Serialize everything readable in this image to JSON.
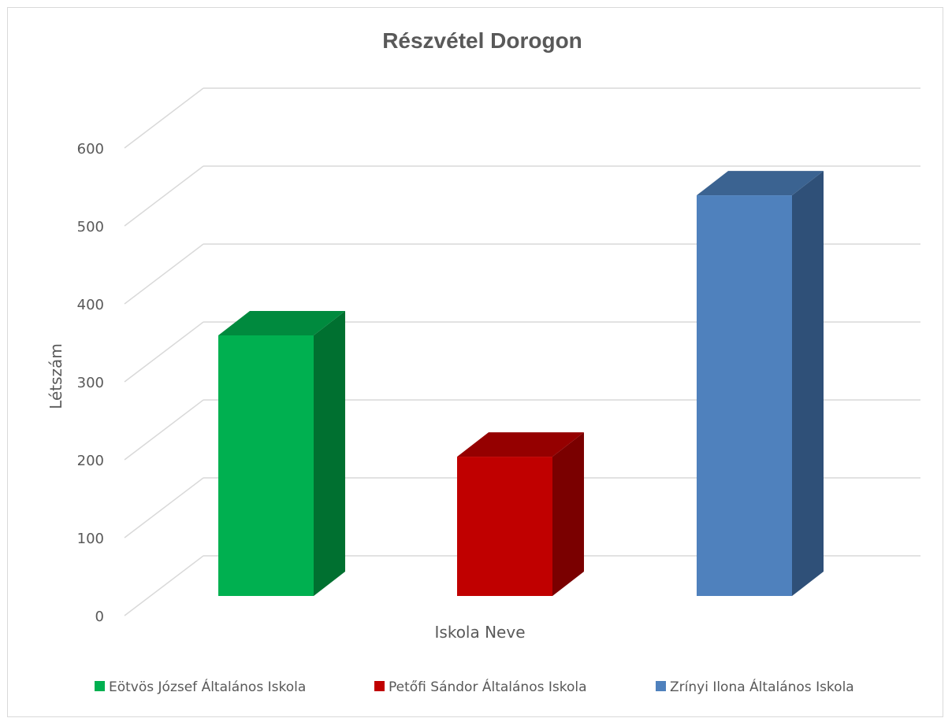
{
  "chart_data": {
    "type": "bar",
    "title": "Részvétel Dorogon",
    "xlabel": "Iskola Neve",
    "ylabel": "Létszám",
    "ylim": [
      0,
      600
    ],
    "yticks": [
      "0",
      "100",
      "200",
      "300",
      "400",
      "500",
      "600"
    ],
    "grid": true,
    "legend_position": "bottom",
    "series": [
      {
        "name": "Eötvös József Általános Iskola",
        "value": 333,
        "color": "#00b050",
        "side_color": "#007030",
        "top_color": "#008a3e"
      },
      {
        "name": "Petőfi Sándor Általános Iskola",
        "value": 178,
        "color": "#c00000",
        "side_color": "#7a0000",
        "top_color": "#950000"
      },
      {
        "name": "Zrínyi Ilona Általános Iskola",
        "value": 512,
        "color": "#4f81bd",
        "side_color": "#2f5078",
        "top_color": "#3b6391"
      }
    ]
  }
}
